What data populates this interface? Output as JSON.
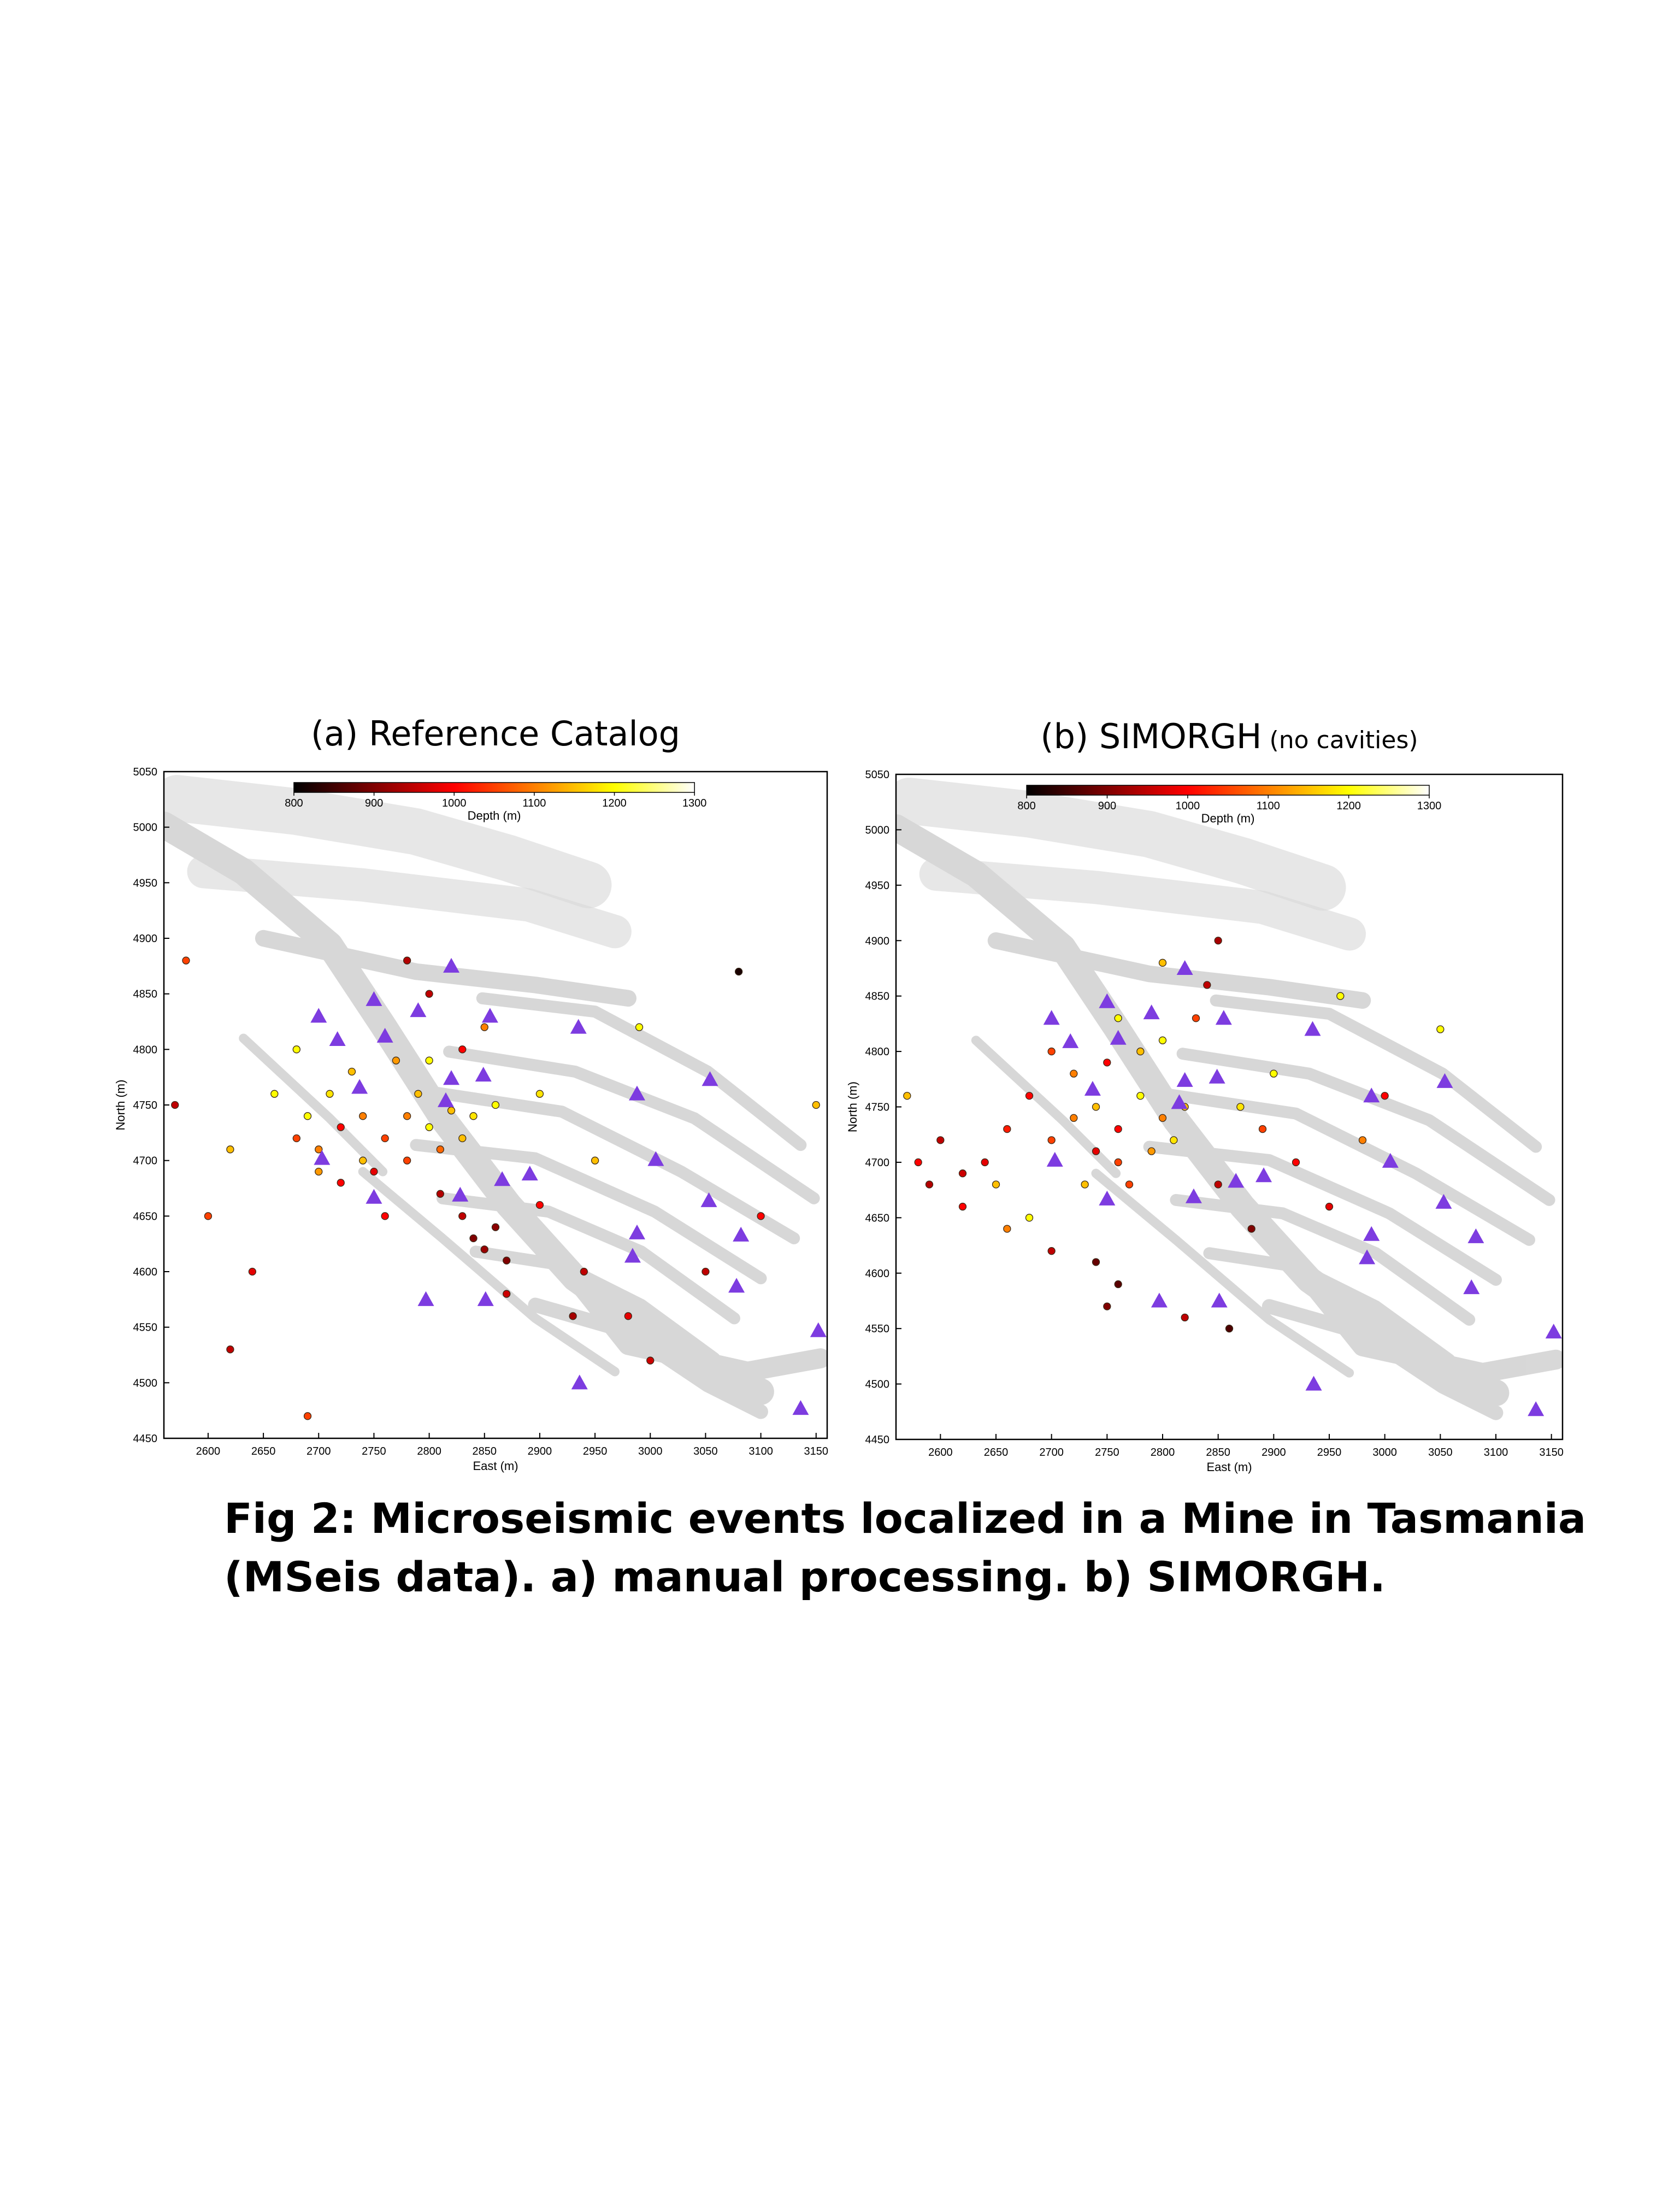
{
  "chart_data": [
    {
      "type": "scatter",
      "title": "(a) Reference Catalog",
      "xlabel": "East (m)",
      "ylabel": "North (m)",
      "xlim": [
        2560,
        3160
      ],
      "ylim": [
        4450,
        5050
      ],
      "xticks": [
        2600,
        2650,
        2700,
        2750,
        2800,
        2850,
        2900,
        2950,
        3000,
        3050,
        3100,
        3150
      ],
      "yticks": [
        4450,
        4500,
        4550,
        4600,
        4650,
        4700,
        4750,
        4800,
        4850,
        4900,
        4950,
        5000,
        5050
      ],
      "colorbar": {
        "label": "Depth (m)",
        "lim": [
          800,
          1300
        ],
        "ticks": [
          800,
          900,
          1000,
          1100,
          1200,
          1300
        ]
      },
      "events": {
        "x": [
          2680,
          2700,
          2720,
          2740,
          2760,
          2780,
          2800,
          2820,
          2840,
          2860,
          2700,
          2720,
          2750,
          2780,
          2810,
          2830,
          2690,
          2710,
          2730,
          2770,
          2800,
          2830,
          2850,
          2800,
          2780,
          2680,
          2620,
          2600,
          2640,
          2620,
          2690,
          2840,
          2850,
          2860,
          2870,
          2830,
          2900,
          2950,
          2940,
          2980,
          3000,
          3050,
          3100,
          3150,
          2570,
          2580,
          2990,
          3080,
          2900,
          2760,
          2810,
          2870,
          2930,
          2660,
          2740,
          2790
        ],
        "y": [
          4720,
          4710,
          4730,
          4700,
          4720,
          4740,
          4730,
          4745,
          4740,
          4750,
          4690,
          4680,
          4690,
          4700,
          4710,
          4720,
          4740,
          4760,
          4780,
          4790,
          4790,
          4800,
          4820,
          4850,
          4880,
          4800,
          4710,
          4650,
          4600,
          4530,
          4470,
          4630,
          4620,
          4640,
          4610,
          4650,
          4660,
          4700,
          4600,
          4560,
          4520,
          4600,
          4650,
          4750,
          4750,
          4880,
          4820,
          4870,
          4760,
          4650,
          4670,
          4580,
          4560,
          4760,
          4740,
          4760
        ],
        "depth": [
          1050,
          1100,
          1000,
          1150,
          1050,
          1100,
          1200,
          1150,
          1180,
          1200,
          1120,
          1000,
          980,
          1050,
          1080,
          1150,
          1200,
          1180,
          1150,
          1120,
          1200,
          1000,
          1100,
          950,
          940,
          1200,
          1150,
          1050,
          980,
          950,
          1050,
          900,
          920,
          910,
          900,
          950,
          1000,
          1150,
          950,
          980,
          960,
          950,
          1000,
          1150,
          950,
          1050,
          1200,
          820,
          1180,
          1000,
          940,
          960,
          930,
          1200,
          1100,
          1150
        ]
      },
      "stations": {
        "color": "#7d3ce0",
        "x": [
          2820,
          2750,
          2700,
          2855,
          2935,
          2790,
          2760,
          2717,
          2849,
          2820,
          2737,
          3054,
          2988,
          2815,
          2703,
          3005,
          2891,
          2866,
          2750,
          2828,
          3053,
          2988,
          3082,
          2984,
          3078,
          2797,
          2851,
          3152,
          2936,
          3136
        ],
        "y": [
          4875,
          4845,
          4830,
          4830,
          4820,
          4835,
          4812,
          4809,
          4777,
          4774,
          4766,
          4773,
          4760,
          4754,
          4702,
          4701,
          4688,
          4683,
          4667,
          4669,
          4664,
          4635,
          4633,
          4614,
          4587,
          4575,
          4575,
          4547,
          4500,
          4477
        ]
      }
    },
    {
      "type": "scatter",
      "title": "(b)  SIMORGH",
      "title_note": "(no cavities)",
      "xlabel": "East (m)",
      "ylabel": "North (m)",
      "xlim": [
        2560,
        3160
      ],
      "ylim": [
        4450,
        5050
      ],
      "xticks": [
        2600,
        2650,
        2700,
        2750,
        2800,
        2850,
        2900,
        2950,
        3000,
        3050,
        3100,
        3150
      ],
      "yticks": [
        4450,
        4500,
        4550,
        4600,
        4650,
        4700,
        4750,
        4800,
        4850,
        4900,
        4950,
        5000,
        5050
      ],
      "colorbar": {
        "label": "Depth (m)",
        "lim": [
          800,
          1300
        ],
        "ticks": [
          800,
          900,
          1000,
          1100,
          1200,
          1300
        ]
      },
      "events": {
        "x": [
          2700,
          2720,
          2740,
          2760,
          2780,
          2800,
          2820,
          2740,
          2760,
          2790,
          2810,
          2720,
          2750,
          2780,
          2800,
          2830,
          2840,
          2850,
          2800,
          2760,
          2700,
          2680,
          2660,
          2640,
          2620,
          2600,
          2580,
          2590,
          2620,
          2650,
          2680,
          2700,
          2740,
          2760,
          2750,
          2870,
          2890,
          2900,
          2920,
          2950,
          2980,
          3000,
          3050,
          2570,
          2850,
          2880,
          2820,
          2860,
          2960,
          2660,
          2730,
          2770
        ],
        "y": [
          4720,
          4740,
          4750,
          4730,
          4760,
          4740,
          4750,
          4710,
          4700,
          4710,
          4720,
          4780,
          4790,
          4800,
          4810,
          4830,
          4860,
          4900,
          4880,
          4830,
          4800,
          4760,
          4730,
          4700,
          4690,
          4720,
          4700,
          4680,
          4660,
          4680,
          4650,
          4620,
          4610,
          4590,
          4570,
          4750,
          4730,
          4780,
          4700,
          4660,
          4720,
          4760,
          4820,
          4760,
          4680,
          4640,
          4560,
          4550,
          4850,
          4640,
          4680,
          4680
        ],
        "depth": [
          1050,
          1100,
          1150,
          1000,
          1200,
          1100,
          1150,
          980,
          1050,
          1120,
          1180,
          1100,
          1000,
          1150,
          1200,
          1050,
          950,
          930,
          1150,
          1200,
          1050,
          1000,
          1020,
          980,
          960,
          950,
          1000,
          940,
          1000,
          1150,
          1200,
          950,
          880,
          870,
          900,
          1180,
          1050,
          1200,
          1000,
          980,
          1100,
          1000,
          1200,
          1150,
          950,
          900,
          950,
          860,
          1200,
          1100,
          1150,
          1050
        ]
      },
      "stations": {
        "color": "#7d3ce0",
        "x": [
          2820,
          2750,
          2700,
          2855,
          2935,
          2790,
          2760,
          2717,
          2849,
          2820,
          2737,
          3054,
          2988,
          2815,
          2703,
          3005,
          2891,
          2866,
          2750,
          2828,
          3053,
          2988,
          3082,
          2984,
          3078,
          2797,
          2851,
          3152,
          2936,
          3136
        ],
        "y": [
          4875,
          4845,
          4830,
          4830,
          4820,
          4835,
          4812,
          4809,
          4777,
          4774,
          4766,
          4773,
          4760,
          4754,
          4702,
          4701,
          4688,
          4683,
          4667,
          4669,
          4664,
          4635,
          4633,
          4614,
          4587,
          4575,
          4575,
          4547,
          4500,
          4477
        ]
      }
    }
  ],
  "caption": [
    "Fig 2: Microseismic events localized  in a Mine in Tasmania",
    "(MSeis data). a) manual processing. b) SIMORGH."
  ]
}
